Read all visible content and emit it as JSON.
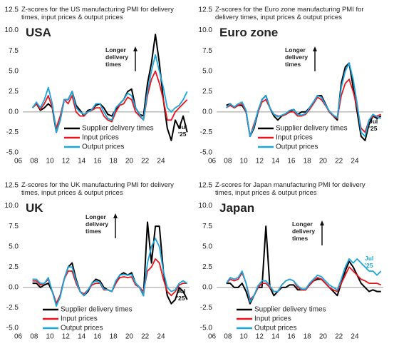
{
  "chart_data": [
    {
      "type": "line",
      "title": "Z-scores for the US manufacturing PMI for delivery times, input prices & output prices",
      "region": "USA",
      "annotation": "Longer delivery times",
      "date_label": "Jul '25",
      "date_label_color": "#111111",
      "legend": "lower-right",
      "x": [
        2006,
        2006.5,
        2007,
        2007.5,
        2008,
        2008.5,
        2009,
        2009.5,
        2010,
        2010.5,
        2011,
        2011.5,
        2012,
        2012.5,
        2013,
        2013.5,
        2014,
        2014.5,
        2015,
        2015.5,
        2016,
        2016.5,
        2017,
        2017.5,
        2018,
        2018.5,
        2019,
        2019.5,
        2020,
        2020.5,
        2021,
        2021.5,
        2022,
        2022.5,
        2023,
        2023.5,
        2024,
        2024.5,
        2025,
        2025.5
      ],
      "xlim": [
        2005.5,
        2025.8
      ],
      "xticks": [
        {
          "value": 2006,
          "label": "06"
        },
        {
          "value": 2008,
          "label": "08"
        },
        {
          "value": 2010,
          "label": "10"
        },
        {
          "value": 2012,
          "label": "12"
        },
        {
          "value": 2014,
          "label": "14"
        },
        {
          "value": 2016,
          "label": "16"
        },
        {
          "value": 2018,
          "label": "18"
        },
        {
          "value": 2020,
          "label": "20"
        },
        {
          "value": 2022,
          "label": "22"
        },
        {
          "value": 2024,
          "label": "24"
        }
      ],
      "ylim": [
        -5,
        12.5
      ],
      "yticks": [
        12.5,
        {
          "value": 10,
          "label": "10.0"
        },
        7.5,
        {
          "value": 5,
          "label": "5.0"
        },
        2.5,
        {
          "value": 0,
          "label": "0.0"
        },
        -2.5,
        {
          "value": -5,
          "label": "-5.0"
        }
      ],
      "series": [
        {
          "name": "Supplier delivery times",
          "color": "#000000",
          "values": [
            0.5,
            1,
            0.2,
            0.5,
            1,
            0.5,
            -2.5,
            -1,
            1.5,
            1.5,
            2.5,
            0.8,
            0.2,
            -0.5,
            0.2,
            0.3,
            0.8,
            1,
            0.5,
            -0.3,
            -0.5,
            0.3,
            1,
            1.5,
            2.5,
            2.8,
            0.5,
            -0.3,
            -0.5,
            3.5,
            6,
            9.5,
            6,
            1.5,
            -2,
            -3.5,
            -1,
            -2,
            -0.5,
            -2.5
          ]
        },
        {
          "name": "Input prices",
          "color": "#e8141c",
          "values": [
            0.5,
            1,
            0.3,
            1,
            2,
            0.5,
            -2,
            -0.5,
            1.5,
            1,
            2,
            0,
            -0.5,
            -0.5,
            0,
            0.2,
            0.5,
            0.5,
            -0.5,
            -1,
            -1.2,
            0,
            0.8,
            1,
            1.8,
            1.5,
            0,
            -0.5,
            -1,
            2,
            4,
            5,
            3.5,
            1.5,
            -1,
            -1,
            0,
            0.5,
            1,
            1.5
          ]
        },
        {
          "name": "Output prices",
          "color": "#1aa7e0",
          "values": [
            0.5,
            1.2,
            0.5,
            1.5,
            3,
            1,
            -2.5,
            -1,
            1.5,
            1.5,
            2.5,
            0.5,
            0,
            -0.3,
            0,
            0.3,
            1,
            1,
            0,
            -0.8,
            -1,
            0.5,
            1,
            1.5,
            2.3,
            2,
            0.5,
            -0.3,
            -1,
            2.5,
            5,
            7,
            5,
            3,
            0.5,
            0,
            0.5,
            0.8,
            1.5,
            2.5
          ]
        }
      ]
    },
    {
      "type": "line",
      "title": "Z-scores for the Euro zone manufacturing PMI for delivery times, input prices & output prices",
      "region": "Euro zone",
      "annotation": "Longer delivery times",
      "date_label": "Jul '25",
      "date_label_color": "#111111",
      "legend": "lower-right",
      "x": [
        2006,
        2006.5,
        2007,
        2007.5,
        2008,
        2008.5,
        2009,
        2009.5,
        2010,
        2010.5,
        2011,
        2011.5,
        2012,
        2012.5,
        2013,
        2013.5,
        2014,
        2014.5,
        2015,
        2015.5,
        2016,
        2016.5,
        2017,
        2017.5,
        2018,
        2018.5,
        2019,
        2019.5,
        2020,
        2020.5,
        2021,
        2021.5,
        2022,
        2022.5,
        2023,
        2023.5,
        2024,
        2024.5,
        2025,
        2025.5
      ],
      "xlim": [
        2005.5,
        2025.8
      ],
      "xticks": [
        {
          "value": 2006,
          "label": "06"
        },
        {
          "value": 2008,
          "label": "08"
        },
        {
          "value": 2010,
          "label": "10"
        },
        {
          "value": 2012,
          "label": "12"
        },
        {
          "value": 2014,
          "label": "14"
        },
        {
          "value": 2016,
          "label": "16"
        },
        {
          "value": 2018,
          "label": "18"
        },
        {
          "value": 2020,
          "label": "20"
        },
        {
          "value": 2022,
          "label": "22"
        },
        {
          "value": 2024,
          "label": "24"
        }
      ],
      "ylim": [
        -5,
        12.5
      ],
      "yticks": [
        12.5,
        {
          "value": 10,
          "label": "10.0"
        },
        7.5,
        {
          "value": 5,
          "label": "5.0"
        },
        2.5,
        {
          "value": 0,
          "label": "0.0"
        },
        -2.5,
        {
          "value": -5,
          "label": "-5.0"
        }
      ],
      "series": [
        {
          "name": "Supplier delivery times",
          "color": "#000000",
          "values": [
            0.8,
            1,
            0.5,
            0.8,
            0.8,
            0,
            -3,
            -2,
            0,
            1.5,
            2,
            0.5,
            -0.5,
            -1,
            -0.5,
            -0.3,
            0,
            0.3,
            -0.3,
            0,
            0,
            0.5,
            1.2,
            2,
            2,
            1,
            0,
            -0.5,
            -1,
            3.5,
            5.5,
            6,
            3,
            0,
            -3,
            -3.5,
            -1.5,
            -0.5,
            -0.8,
            -0.5
          ]
        },
        {
          "name": "Input prices",
          "color": "#e8141c",
          "values": [
            0.5,
            0.8,
            0.5,
            0.8,
            1,
            0,
            -3,
            -1.5,
            0,
            1.2,
            1.5,
            0.5,
            -0.3,
            -0.5,
            -0.5,
            -0.3,
            0,
            0,
            -0.5,
            -0.5,
            -0.3,
            0.3,
            1,
            1.8,
            1.5,
            0.8,
            0,
            -0.5,
            -0.8,
            2,
            3.5,
            4,
            2.5,
            0.5,
            -2,
            -2.5,
            -1,
            -0.5,
            -0.5,
            -0.3
          ]
        },
        {
          "name": "Output prices",
          "color": "#1aa7e0",
          "values": [
            0.5,
            1,
            0.6,
            1,
            1.2,
            0.2,
            -3,
            -1.8,
            0.2,
            1.5,
            2,
            0.5,
            -0.3,
            -0.6,
            -0.4,
            -0.2,
            0.2,
            0.3,
            -0.3,
            -0.4,
            -0.2,
            0.5,
            1.2,
            2,
            1.8,
            0.9,
            0.1,
            -0.4,
            -0.7,
            3,
            5,
            6,
            4,
            1,
            -2.5,
            -3,
            -1,
            -0.3,
            -0.6,
            -0.8
          ]
        }
      ]
    },
    {
      "type": "line",
      "title": "Z-scores for the UK manufacturing PMI for delivery times, input prices & output prices",
      "region": "UK",
      "annotation": "Longer delivery times",
      "date_label": "Jul '25",
      "date_label_color": "#111111",
      "legend": "lower-left",
      "x": [
        2006,
        2006.5,
        2007,
        2007.5,
        2008,
        2008.5,
        2009,
        2009.5,
        2010,
        2010.5,
        2011,
        2011.5,
        2012,
        2012.5,
        2013,
        2013.5,
        2014,
        2014.5,
        2015,
        2015.5,
        2016,
        2016.5,
        2017,
        2017.5,
        2018,
        2018.5,
        2019,
        2019.5,
        2020,
        2020.5,
        2021,
        2021.5,
        2022,
        2022.5,
        2023,
        2023.5,
        2024,
        2024.5,
        2025,
        2025.5
      ],
      "xlim": [
        2005.5,
        2025.8
      ],
      "xticks": [
        {
          "value": 2006,
          "label": "06"
        },
        {
          "value": 2008,
          "label": "08"
        },
        {
          "value": 2010,
          "label": "10"
        },
        {
          "value": 2012,
          "label": "12"
        },
        {
          "value": 2014,
          "label": "14"
        },
        {
          "value": 2016,
          "label": "16"
        },
        {
          "value": 2018,
          "label": "18"
        },
        {
          "value": 2020,
          "label": "20"
        },
        {
          "value": 2022,
          "label": "22"
        },
        {
          "value": 2024,
          "label": "24"
        }
      ],
      "ylim": [
        -5,
        12.5
      ],
      "yticks": [
        12.5,
        {
          "value": 10,
          "label": "10.0"
        },
        7.5,
        {
          "value": 5,
          "label": "5.0"
        },
        2.5,
        {
          "value": 0,
          "label": "0.0"
        },
        -2.5,
        {
          "value": -5,
          "label": "-5.0"
        }
      ],
      "series": [
        {
          "name": "Supplier delivery times",
          "color": "#000000",
          "values": [
            0.5,
            0.5,
            0,
            0.3,
            0.5,
            -0.5,
            -2,
            -1,
            1,
            2.5,
            3,
            1,
            -0.5,
            -1,
            -0.5,
            0.5,
            1,
            0.8,
            0,
            -0.3,
            -0.5,
            0.5,
            1.5,
            1.8,
            1.5,
            1.8,
            0.5,
            0,
            -1,
            8,
            3,
            7.5,
            7.5,
            2,
            -1,
            -2,
            -1.5,
            0,
            -0.5,
            -1.5
          ]
        },
        {
          "name": "Input prices",
          "color": "#e8141c",
          "values": [
            0.8,
            0.8,
            0.3,
            0.5,
            1,
            -0.5,
            -2,
            -1,
            1,
            2,
            2,
            0.5,
            -0.5,
            -0.8,
            -0.3,
            0.3,
            0.5,
            0.5,
            -0.3,
            -0.3,
            -0.5,
            0.5,
            1.2,
            1.3,
            1.2,
            1.3,
            0.3,
            0,
            -0.5,
            2,
            2.5,
            3.5,
            3,
            1,
            -0.5,
            -1,
            -0.5,
            0.3,
            0.5,
            0.5
          ]
        },
        {
          "name": "Output prices",
          "color": "#1aa7e0",
          "values": [
            1,
            1,
            0.5,
            0.5,
            1.2,
            -0.5,
            -2.3,
            -1.2,
            1,
            2.5,
            2.5,
            0.8,
            -0.5,
            -1,
            -0.3,
            0.5,
            0.8,
            0.6,
            -0.2,
            -0.3,
            -0.5,
            0.8,
            1.5,
            1.6,
            1.5,
            1.6,
            0.5,
            0,
            -1,
            3,
            5,
            6,
            5,
            2,
            0,
            -0.5,
            -0.3,
            0.5,
            0.8,
            0.5
          ]
        }
      ]
    },
    {
      "type": "line",
      "title": "Z-scores for Japan manufacturing PMI for delivery times, input prices & output prices",
      "region": "Japan",
      "annotation": "Longer delivery times",
      "date_label": "Jul '25",
      "date_label_color": "#1aa7e0",
      "legend": "lower-left",
      "x": [
        2006,
        2006.5,
        2007,
        2007.5,
        2008,
        2008.5,
        2009,
        2009.5,
        2010,
        2010.5,
        2011,
        2011.5,
        2012,
        2012.5,
        2013,
        2013.5,
        2014,
        2014.5,
        2015,
        2015.5,
        2016,
        2016.5,
        2017,
        2017.5,
        2018,
        2018.5,
        2019,
        2019.5,
        2020,
        2020.5,
        2021,
        2021.5,
        2022,
        2022.5,
        2023,
        2023.5,
        2024,
        2024.5,
        2025,
        2025.5
      ],
      "xlim": [
        2005.5,
        2025.8
      ],
      "xticks": [
        {
          "value": 2006,
          "label": "06"
        },
        {
          "value": 2008,
          "label": "08"
        },
        {
          "value": 2010,
          "label": "10"
        },
        {
          "value": 2012,
          "label": "12"
        },
        {
          "value": 2014,
          "label": "14"
        },
        {
          "value": 2016,
          "label": "16"
        },
        {
          "value": 2018,
          "label": "18"
        },
        {
          "value": 2020,
          "label": "20"
        },
        {
          "value": 2022,
          "label": "22"
        },
        {
          "value": 2024,
          "label": "24"
        }
      ],
      "ylim": [
        -5,
        12.5
      ],
      "yticks": [
        12.5,
        {
          "value": 10,
          "label": "10.0"
        },
        7.5,
        {
          "value": 5,
          "label": "5.0"
        },
        2.5,
        {
          "value": 0,
          "label": "0.0"
        },
        -2.5,
        {
          "value": -5,
          "label": "-5.0"
        }
      ],
      "series": [
        {
          "name": "Supplier delivery times",
          "color": "#000000",
          "values": [
            0.5,
            0.5,
            0,
            0,
            0.5,
            -0.5,
            -2,
            -1,
            0,
            0,
            7.5,
            0,
            -1,
            -0.5,
            0,
            0,
            0.3,
            0.3,
            -0.3,
            -0.3,
            -0.3,
            0.3,
            0.8,
            1,
            1,
            0.5,
            0,
            -0.5,
            -1,
            0.5,
            2,
            3.2,
            2.5,
            1.5,
            0.5,
            0,
            -0.5,
            -0.3,
            -0.5,
            -0.5
          ]
        },
        {
          "name": "Input prices",
          "color": "#e8141c",
          "values": [
            0.5,
            1,
            0.8,
            1,
            1.8,
            0.5,
            -1.5,
            -1,
            0,
            0.5,
            0.5,
            0,
            -0.5,
            -0.5,
            0.3,
            0.8,
            1,
            0.8,
            0,
            -0.3,
            -0.3,
            0.3,
            0.8,
            1.2,
            1,
            0.5,
            0,
            -0.3,
            -0.5,
            0.5,
            1.5,
            2.5,
            2,
            1.5,
            1,
            0.8,
            0.5,
            0.5,
            0.5,
            0.3
          ]
        },
        {
          "name": "Output prices",
          "color": "#1aa7e0",
          "values": [
            0.5,
            1.2,
            1,
            1.2,
            2,
            0.5,
            -1.8,
            -1,
            0.2,
            0.8,
            0.8,
            0.2,
            -0.5,
            -0.5,
            0.3,
            0.8,
            1,
            0.8,
            0.2,
            -0.2,
            -0.2,
            0.5,
            1,
            1.5,
            1.3,
            0.8,
            0.3,
            0,
            -0.3,
            1,
            2.5,
            3.5,
            3,
            3.5,
            3,
            2.5,
            2,
            2,
            1.5,
            2
          ]
        }
      ]
    }
  ]
}
